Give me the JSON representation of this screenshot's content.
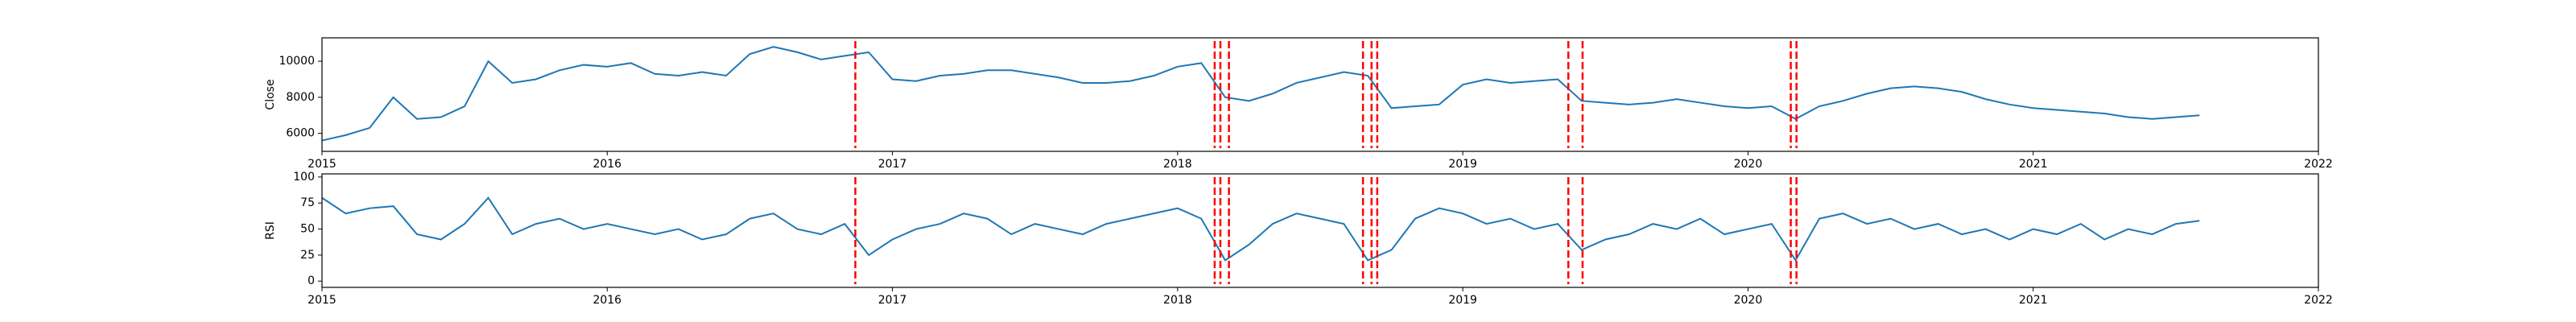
{
  "chart_data": [
    {
      "type": "line",
      "ylabel": "Close",
      "color": "#1f77b4",
      "x": [
        2015,
        2015.083,
        2015.167,
        2015.25,
        2015.333,
        2015.417,
        2015.5,
        2015.583,
        2015.667,
        2015.75,
        2015.833,
        2015.917,
        2016,
        2016.083,
        2016.167,
        2016.25,
        2016.333,
        2016.417,
        2016.5,
        2016.583,
        2016.667,
        2016.75,
        2016.833,
        2016.917,
        2017,
        2017.083,
        2017.167,
        2017.25,
        2017.333,
        2017.417,
        2017.5,
        2017.583,
        2017.667,
        2017.75,
        2017.833,
        2017.917,
        2018,
        2018.083,
        2018.167,
        2018.25,
        2018.333,
        2018.417,
        2018.5,
        2018.583,
        2018.667,
        2018.75,
        2018.833,
        2018.917,
        2019,
        2019.083,
        2019.167,
        2019.25,
        2019.333,
        2019.417,
        2019.5,
        2019.583,
        2019.667,
        2019.75,
        2019.833,
        2019.917,
        2020,
        2020.083,
        2020.167,
        2020.25,
        2020.333,
        2020.417,
        2020.5,
        2020.583,
        2020.667,
        2020.75,
        2020.833,
        2020.917,
        2021,
        2021.083,
        2021.167,
        2021.25,
        2021.333,
        2021.417,
        2021.5,
        2021.583
      ],
      "values": [
        5600,
        5900,
        6300,
        8000,
        6800,
        6900,
        7500,
        10000,
        8800,
        9000,
        9500,
        9800,
        9700,
        9900,
        9300,
        9200,
        9400,
        9200,
        10400,
        10800,
        10500,
        10100,
        10300,
        10500,
        9000,
        8900,
        9200,
        9300,
        9500,
        9500,
        9300,
        9100,
        8800,
        8800,
        8900,
        9200,
        9700,
        9900,
        8000,
        7800,
        8200,
        8800,
        9100,
        9400,
        9200,
        7400,
        7500,
        7600,
        8700,
        9000,
        8800,
        8900,
        9000,
        7800,
        7700,
        7600,
        7700,
        7900,
        7700,
        7500,
        7400,
        7500,
        6800,
        7500,
        7800,
        8200,
        8500,
        8600,
        8500,
        8300,
        7900,
        7600,
        7400,
        7300,
        7200,
        7100,
        6900,
        6800,
        6900,
        7000
      ],
      "xlim": [
        2015,
        2022
      ],
      "xticks": [
        2015,
        2016,
        2017,
        2018,
        2019,
        2020,
        2021,
        2022
      ],
      "ylim": [
        5000,
        11300
      ],
      "yticks": [
        6000,
        8000,
        10000
      ],
      "vlines": {
        "color": "red",
        "x": [
          2016.87,
          2018.13,
          2018.15,
          2018.18,
          2018.65,
          2018.68,
          2018.7,
          2019.37,
          2019.42,
          2020.15,
          2020.17
        ]
      }
    },
    {
      "type": "line",
      "ylabel": "RSI",
      "color": "#1f77b4",
      "x": [
        2015,
        2015.083,
        2015.167,
        2015.25,
        2015.333,
        2015.417,
        2015.5,
        2015.583,
        2015.667,
        2015.75,
        2015.833,
        2015.917,
        2016,
        2016.083,
        2016.167,
        2016.25,
        2016.333,
        2016.417,
        2016.5,
        2016.583,
        2016.667,
        2016.75,
        2016.833,
        2016.917,
        2017,
        2017.083,
        2017.167,
        2017.25,
        2017.333,
        2017.417,
        2017.5,
        2017.583,
        2017.667,
        2017.75,
        2017.833,
        2017.917,
        2018,
        2018.083,
        2018.167,
        2018.25,
        2018.333,
        2018.417,
        2018.5,
        2018.583,
        2018.667,
        2018.75,
        2018.833,
        2018.917,
        2019,
        2019.083,
        2019.167,
        2019.25,
        2019.333,
        2019.417,
        2019.5,
        2019.583,
        2019.667,
        2019.75,
        2019.833,
        2019.917,
        2020,
        2020.083,
        2020.167,
        2020.25,
        2020.333,
        2020.417,
        2020.5,
        2020.583,
        2020.667,
        2020.75,
        2020.833,
        2020.917,
        2021,
        2021.083,
        2021.167,
        2021.25,
        2021.333,
        2021.417,
        2021.5,
        2021.583
      ],
      "values": [
        80,
        65,
        70,
        72,
        45,
        40,
        55,
        80,
        45,
        55,
        60,
        50,
        55,
        50,
        45,
        50,
        40,
        45,
        60,
        65,
        50,
        45,
        55,
        25,
        40,
        50,
        55,
        65,
        60,
        45,
        55,
        50,
        45,
        55,
        60,
        65,
        70,
        60,
        20,
        35,
        55,
        65,
        60,
        55,
        20,
        30,
        60,
        70,
        65,
        55,
        60,
        50,
        55,
        30,
        40,
        45,
        55,
        50,
        60,
        45,
        50,
        55,
        20,
        60,
        65,
        55,
        60,
        50,
        55,
        45,
        50,
        40,
        50,
        45,
        55,
        40,
        50,
        45,
        55,
        58
      ],
      "xlim": [
        2015,
        2022
      ],
      "xticks": [
        2015,
        2016,
        2017,
        2018,
        2019,
        2020,
        2021,
        2022
      ],
      "ylim": [
        -6,
        103
      ],
      "yticks": [
        0,
        25,
        50,
        75,
        100
      ],
      "vlines": {
        "color": "red",
        "x": [
          2016.87,
          2018.13,
          2018.15,
          2018.18,
          2018.65,
          2018.68,
          2018.7,
          2019.37,
          2019.42,
          2020.15,
          2020.17
        ]
      }
    }
  ]
}
